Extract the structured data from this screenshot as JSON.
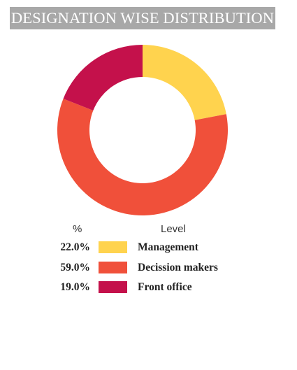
{
  "chart_data": {
    "type": "pie",
    "title": "DESIGNATION WISE DISTRIBUTION",
    "legend_header": {
      "pct": "%",
      "level": "Level"
    },
    "slices": [
      {
        "label": "Management",
        "value": 22.0,
        "pct_label": "22.0%",
        "color": "#FFD34E"
      },
      {
        "label": "Decission makers",
        "value": 59.0,
        "pct_label": "59.0%",
        "color": "#F0503A"
      },
      {
        "label": "Front office",
        "value": 19.0,
        "pct_label": "19.0%",
        "color": "#C4114B"
      }
    ],
    "legend_placement": "bottom"
  }
}
